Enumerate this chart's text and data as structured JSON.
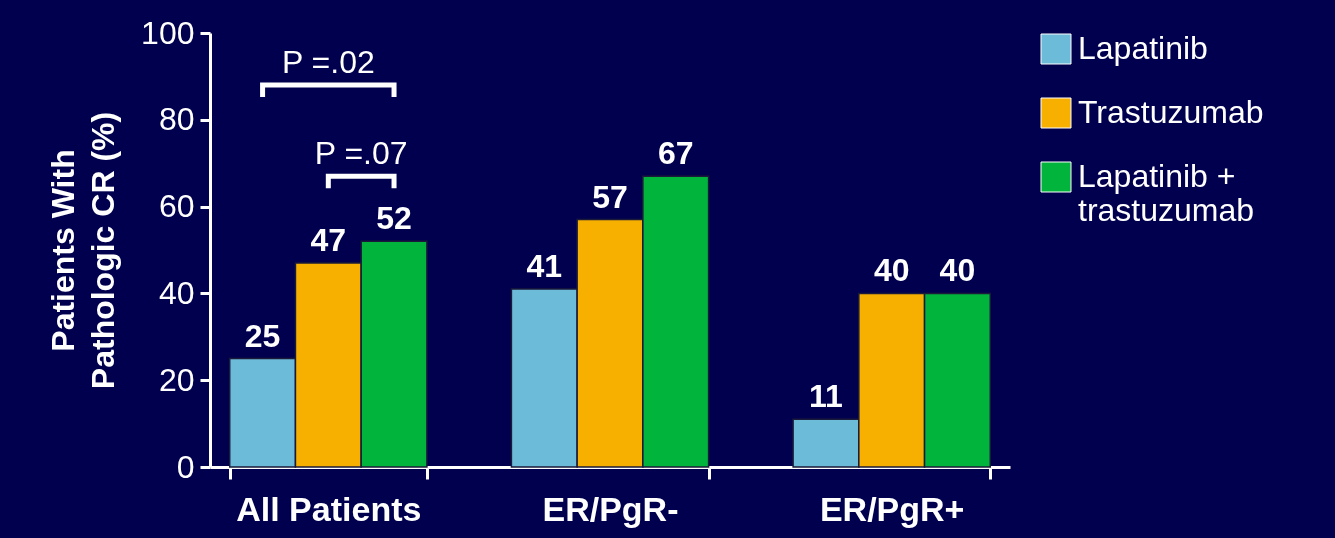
{
  "chart_data": {
    "type": "bar",
    "ylabel": "Patients With Pathologic CR (%)",
    "categories": [
      "All Patients",
      "ER/PgR-",
      "ER/PgR+"
    ],
    "series": [
      {
        "name": "Lapatinib",
        "color": "#6cbbd9",
        "values": [
          25,
          41,
          11
        ]
      },
      {
        "name": "Trastuzumab",
        "color": "#f7b000",
        "values": [
          47,
          57,
          40
        ]
      },
      {
        "name": "Lapatinib + trastuzumab",
        "color": "#00b43c",
        "values": [
          52,
          67,
          40
        ]
      }
    ],
    "ylim": [
      0,
      100
    ],
    "yticks": [
      0,
      20,
      40,
      60,
      80,
      100
    ],
    "data_labels": true,
    "legend": "right",
    "grid": false,
    "annotations": [
      "P =.02",
      "P =.07"
    ]
  }
}
